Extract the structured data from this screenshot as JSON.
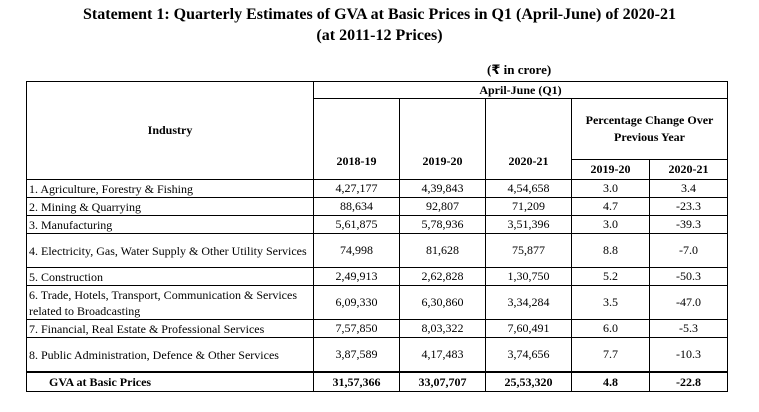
{
  "title": {
    "line1": "Statement 1: Quarterly Estimates of GVA at Basic Prices in Q1 (April-June) of 2020-21",
    "line2": "(at 2011-12 Prices)"
  },
  "unit": {
    "open": "(",
    "rupee": "₹",
    "text": " in crore)"
  },
  "table": {
    "period_header": "April-June (Q1)",
    "industry_header": "Industry",
    "year_headers": [
      "2018-19",
      "2019-20",
      "2020-21"
    ],
    "pct_header": "Percentage Change Over Previous Year",
    "pct_years": [
      "2019-20",
      "2020-21"
    ],
    "rows": [
      {
        "industry": "1. Agriculture, Forestry & Fishing",
        "v1": "4,27,177",
        "v2": "4,39,843",
        "v3": "4,54,658",
        "p1": "3.0",
        "p2": "3.4"
      },
      {
        "industry": "2. Mining & Quarrying",
        "v1": "88,634",
        "v2": "92,807",
        "v3": "71,209",
        "p1": "4.7",
        "p2": "-23.3"
      },
      {
        "industry": "3. Manufacturing",
        "v1": "5,61,875",
        "v2": "5,78,936",
        "v3": "3,51,396",
        "p1": "3.0",
        "p2": "-39.3"
      },
      {
        "industry": "4. Electricity, Gas, Water Supply & Other Utility Services",
        "v1": "74,998",
        "v2": "81,628",
        "v3": "75,877",
        "p1": "8.8",
        "p2": "-7.0"
      },
      {
        "industry": "5. Construction",
        "v1": "2,49,913",
        "v2": "2,62,828",
        "v3": "1,30,750",
        "p1": "5.2",
        "p2": "-50.3"
      },
      {
        "industry": "6. Trade, Hotels, Transport, Communication & Services related to Broadcasting",
        "v1": "6,09,330",
        "v2": "6,30,860",
        "v3": "3,34,284",
        "p1": "3.5",
        "p2": "-47.0"
      },
      {
        "industry": "7. Financial, Real Estate & Professional Services",
        "v1": "7,57,850",
        "v2": "8,03,322",
        "v3": "7,60,491",
        "p1": "6.0",
        "p2": "-5.3"
      },
      {
        "industry": "8. Public Administration, Defence & Other Services",
        "v1": "3,87,589",
        "v2": "4,17,483",
        "v3": "3,74,656",
        "p1": "7.7",
        "p2": "-10.3"
      }
    ],
    "total": {
      "industry": "GVA at Basic Prices",
      "v1": "31,57,366",
      "v2": "33,07,707",
      "v3": "25,53,320",
      "p1": "4.8",
      "p2": "-22.8"
    }
  }
}
